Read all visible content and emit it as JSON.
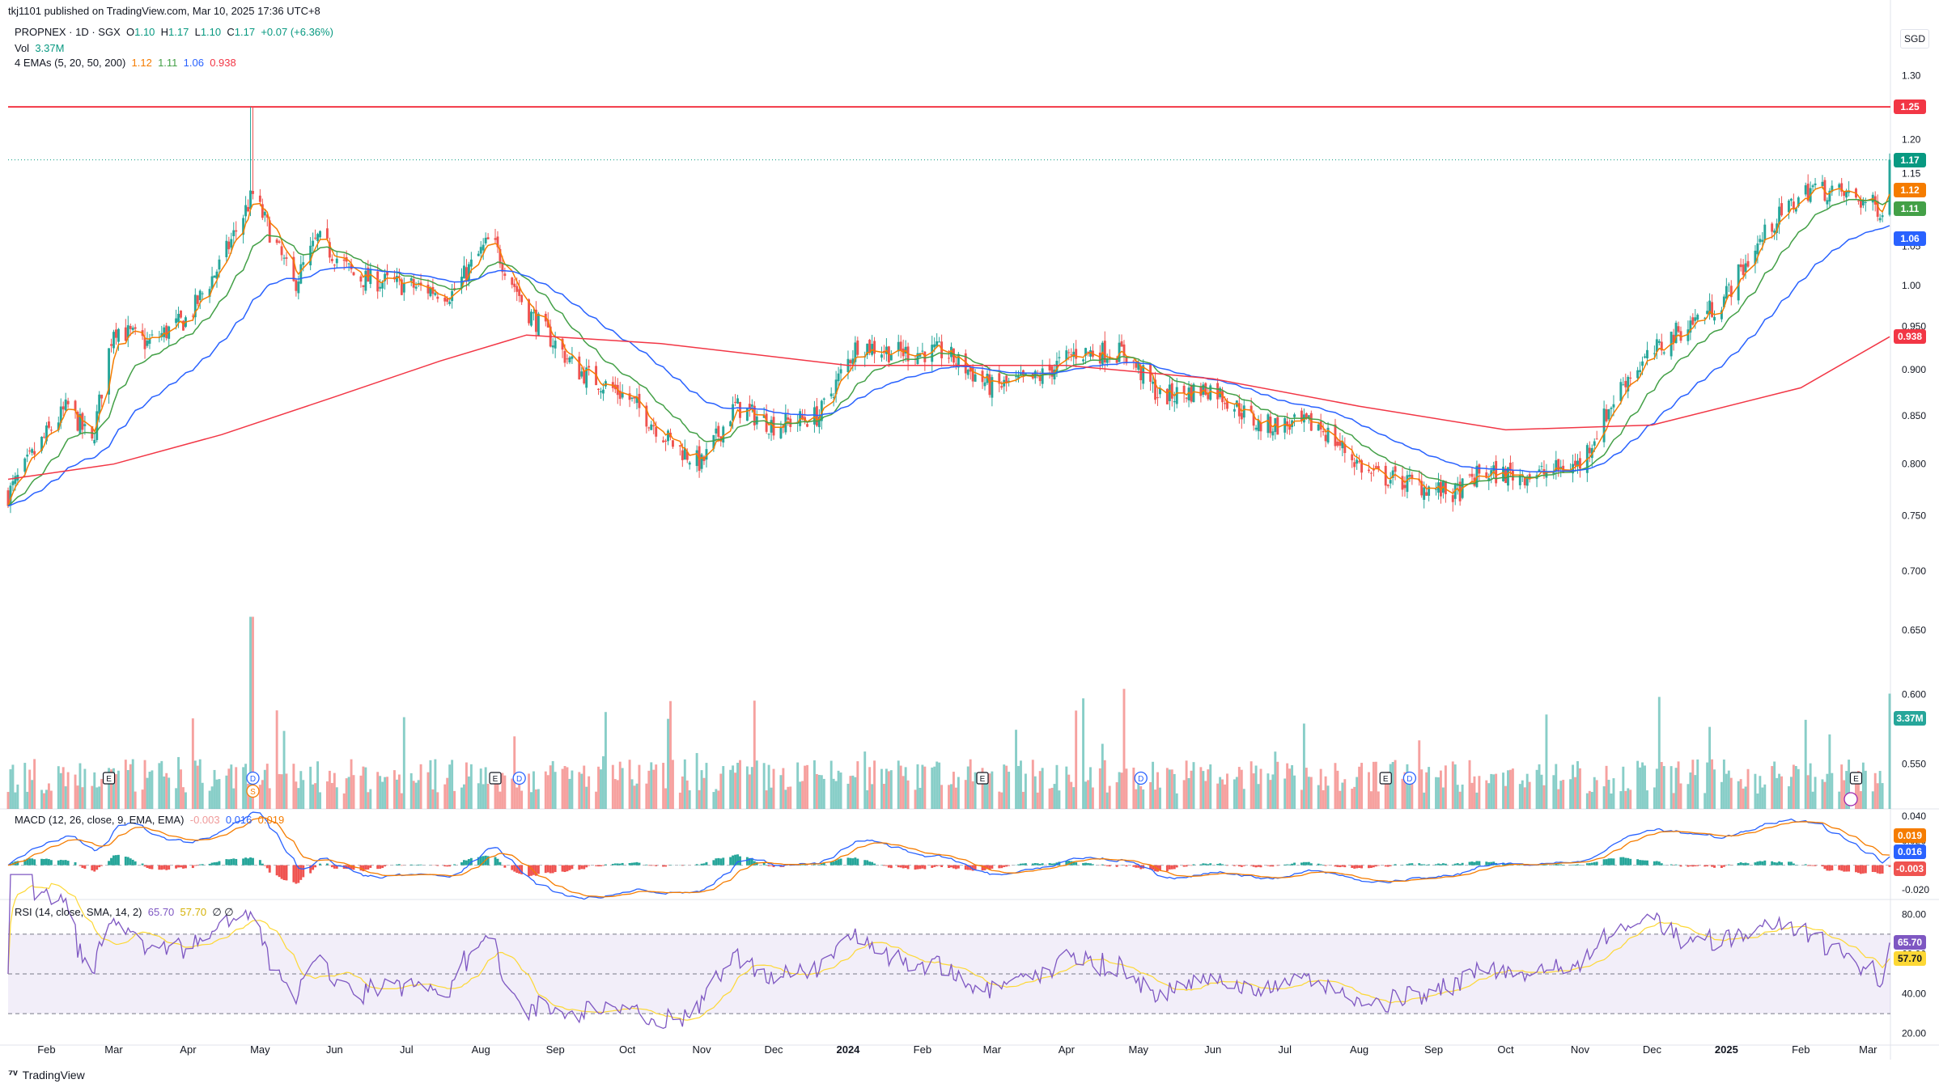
{
  "publish_line": "tkj1101 published on TradingView.com, Mar 10, 2025 17:36 UTC+8",
  "footer_brand": "TradingView",
  "currency": "SGD",
  "legend": {
    "symbol": "PROPNEX · 1D · SGX",
    "open_label": "O",
    "open": "1.10",
    "high_label": "H",
    "high": "1.17",
    "low_label": "L",
    "low": "1.10",
    "close_label": "C",
    "close": "1.17",
    "change": "+0.07 (+6.36%)",
    "vol_label": "Vol",
    "vol": "3.37M",
    "ema_label": "4 EMAs (5, 20, 50, 200)",
    "ema5": "1.12",
    "ema20": "1.11",
    "ema50": "1.06",
    "ema200": "0.938",
    "macd_label": "MACD (12, 26, close, 9, EMA, EMA)",
    "macd_hist": "-0.003",
    "macd_line": "0.016",
    "macd_signal": "0.019",
    "rsi_label": "RSI (14, close, SMA, 14, 2)",
    "rsi": "65.70",
    "rsi_ma": "57.70",
    "rsi_extra": "∅ ∅"
  },
  "colors": {
    "up": "#26a69a",
    "down": "#ef5350",
    "ema5": "#f57c00",
    "ema20": "#43a047",
    "ema50": "#2962ff",
    "ema200": "#f23645",
    "resistance": "#f23645",
    "rsi": "#7e57c2",
    "rsi_ma": "#fdd835"
  },
  "price_tags": [
    {
      "value": "1.25",
      "color": "#f23645"
    },
    {
      "value": "1.17",
      "color": "#089981"
    },
    {
      "value": "1.12",
      "color": "#f57c00"
    },
    {
      "value": "1.11",
      "color": "#43a047"
    },
    {
      "value": "1.06",
      "color": "#2962ff"
    },
    {
      "value": "0.938",
      "color": "#f23645"
    },
    {
      "value": "3.37M",
      "color": "#26a69a"
    }
  ],
  "macd_tags": [
    {
      "value": "0.019",
      "color": "#f57c00"
    },
    {
      "value": "0.016",
      "color": "#2962ff"
    },
    {
      "value": "-0.003",
      "color": "#ef5350"
    }
  ],
  "rsi_tags": [
    {
      "value": "65.70",
      "color": "#7e57c2"
    },
    {
      "value": "57.70",
      "color": "#fdd835"
    }
  ],
  "event_markers": [
    {
      "type": "E",
      "date": "2023-02-27"
    },
    {
      "type": "D",
      "date": "2023-04-28"
    },
    {
      "type": "S",
      "date": "2023-04-28"
    },
    {
      "type": "E",
      "date": "2023-08-07"
    },
    {
      "type": "D",
      "date": "2023-08-17"
    },
    {
      "type": "E",
      "date": "2024-02-26"
    },
    {
      "type": "D",
      "date": "2024-05-02"
    },
    {
      "type": "E",
      "date": "2024-08-12"
    },
    {
      "type": "D",
      "date": "2024-08-22"
    },
    {
      "type": "E",
      "date": "2025-02-24"
    }
  ],
  "chart_data": {
    "type": "candlestick",
    "x_axis": {
      "type": "date",
      "range": [
        "2023-01-16",
        "2025-03-10"
      ],
      "tick_labels": [
        {
          "date": "2023-02-01",
          "label": "Feb"
        },
        {
          "date": "2023-03-01",
          "label": "Mar"
        },
        {
          "date": "2023-04-01",
          "label": "Apr"
        },
        {
          "date": "2023-05-01",
          "label": "May"
        },
        {
          "date": "2023-06-01",
          "label": "Jun"
        },
        {
          "date": "2023-07-01",
          "label": "Jul"
        },
        {
          "date": "2023-08-01",
          "label": "Aug"
        },
        {
          "date": "2023-09-01",
          "label": "Sep"
        },
        {
          "date": "2023-10-01",
          "label": "Oct"
        },
        {
          "date": "2023-11-01",
          "label": "Nov"
        },
        {
          "date": "2023-12-01",
          "label": "Dec"
        },
        {
          "date": "2024-01-01",
          "label": "2024"
        },
        {
          "date": "2024-02-01",
          "label": "Feb"
        },
        {
          "date": "2024-03-01",
          "label": "Mar"
        },
        {
          "date": "2024-04-01",
          "label": "Apr"
        },
        {
          "date": "2024-05-01",
          "label": "May"
        },
        {
          "date": "2024-06-01",
          "label": "Jun"
        },
        {
          "date": "2024-07-01",
          "label": "Jul"
        },
        {
          "date": "2024-08-01",
          "label": "Aug"
        },
        {
          "date": "2024-09-01",
          "label": "Sep"
        },
        {
          "date": "2024-10-01",
          "label": "Oct"
        },
        {
          "date": "2024-11-01",
          "label": "Nov"
        },
        {
          "date": "2024-12-01",
          "label": "Dec"
        },
        {
          "date": "2025-01-01",
          "label": "2025"
        },
        {
          "date": "2025-02-01",
          "label": "Feb"
        },
        {
          "date": "2025-03-01",
          "label": "Mar"
        }
      ]
    },
    "price_axis": {
      "scale": "log",
      "range": [
        0.52,
        1.4
      ],
      "ticks": [
        "1.35",
        "1.30",
        "1.25",
        "1.20",
        "1.15",
        "1.10",
        "1.05",
        "1.00",
        "0.950",
        "0.900",
        "0.850",
        "0.800",
        "0.750",
        "0.700",
        "0.650",
        "0.600",
        "0.550"
      ]
    },
    "resistance_level": 1.25,
    "last_price": 1.17,
    "price_path": [
      {
        "date": "2023-01-16",
        "close": 0.77
      },
      {
        "date": "2023-02-01",
        "close": 0.83
      },
      {
        "date": "2023-02-10",
        "close": 0.86
      },
      {
        "date": "2023-02-20",
        "close": 0.82
      },
      {
        "date": "2023-03-01",
        "close": 0.95
      },
      {
        "date": "2023-03-15",
        "close": 0.93
      },
      {
        "date": "2023-04-01",
        "close": 0.96
      },
      {
        "date": "2023-04-15",
        "close": 1.03
      },
      {
        "date": "2023-04-28",
        "close": 1.12
      },
      {
        "date": "2023-05-05",
        "close": 1.07
      },
      {
        "date": "2023-05-15",
        "close": 1.0
      },
      {
        "date": "2023-05-25",
        "close": 1.06
      },
      {
        "date": "2023-06-10",
        "close": 1.01
      },
      {
        "date": "2023-07-01",
        "close": 1.0
      },
      {
        "date": "2023-07-20",
        "close": 0.99
      },
      {
        "date": "2023-08-05",
        "close": 1.06
      },
      {
        "date": "2023-08-20",
        "close": 0.97
      },
      {
        "date": "2023-09-10",
        "close": 0.9
      },
      {
        "date": "2023-10-01",
        "close": 0.87
      },
      {
        "date": "2023-10-20",
        "close": 0.82
      },
      {
        "date": "2023-11-01",
        "close": 0.8
      },
      {
        "date": "2023-11-15",
        "close": 0.86
      },
      {
        "date": "2023-12-01",
        "close": 0.84
      },
      {
        "date": "2023-12-20",
        "close": 0.85
      },
      {
        "date": "2024-01-05",
        "close": 0.93
      },
      {
        "date": "2024-01-20",
        "close": 0.92
      },
      {
        "date": "2024-02-10",
        "close": 0.92
      },
      {
        "date": "2024-03-01",
        "close": 0.88
      },
      {
        "date": "2024-03-20",
        "close": 0.89
      },
      {
        "date": "2024-04-05",
        "close": 0.92
      },
      {
        "date": "2024-04-25",
        "close": 0.92
      },
      {
        "date": "2024-05-10",
        "close": 0.87
      },
      {
        "date": "2024-06-01",
        "close": 0.88
      },
      {
        "date": "2024-06-20",
        "close": 0.84
      },
      {
        "date": "2024-07-15",
        "close": 0.84
      },
      {
        "date": "2024-08-05",
        "close": 0.79
      },
      {
        "date": "2024-08-25",
        "close": 0.78
      },
      {
        "date": "2024-09-10",
        "close": 0.77
      },
      {
        "date": "2024-09-20",
        "close": 0.79
      },
      {
        "date": "2024-10-15",
        "close": 0.79
      },
      {
        "date": "2024-11-01",
        "close": 0.8
      },
      {
        "date": "2024-11-20",
        "close": 0.89
      },
      {
        "date": "2024-12-10",
        "close": 0.94
      },
      {
        "date": "2024-12-30",
        "close": 0.98
      },
      {
        "date": "2025-01-20",
        "close": 1.08
      },
      {
        "date": "2025-02-05",
        "close": 1.13
      },
      {
        "date": "2025-02-20",
        "close": 1.12
      },
      {
        "date": "2025-03-07",
        "close": 1.1
      },
      {
        "date": "2025-03-10",
        "close": 1.17
      }
    ],
    "ema200_path": [
      {
        "date": "2023-01-16",
        "value": 0.785
      },
      {
        "date": "2023-03-01",
        "value": 0.8
      },
      {
        "date": "2023-04-15",
        "value": 0.83
      },
      {
        "date": "2023-06-01",
        "value": 0.87
      },
      {
        "date": "2023-07-15",
        "value": 0.91
      },
      {
        "date": "2023-08-20",
        "value": 0.94
      },
      {
        "date": "2023-10-15",
        "value": 0.93
      },
      {
        "date": "2024-01-01",
        "value": 0.905
      },
      {
        "date": "2024-04-01",
        "value": 0.905
      },
      {
        "date": "2024-06-01",
        "value": 0.89
      },
      {
        "date": "2024-08-01",
        "value": 0.86
      },
      {
        "date": "2024-10-01",
        "value": 0.835
      },
      {
        "date": "2024-12-01",
        "value": 0.84
      },
      {
        "date": "2025-02-01",
        "value": 0.88
      },
      {
        "date": "2025-03-10",
        "value": 0.938
      }
    ],
    "volume": {
      "last": "3.37M",
      "max_shown": "≈10M"
    },
    "macd": {
      "range": [
        -0.028,
        0.046
      ],
      "ticks": [
        "0.040",
        "0.020",
        "0",
        "-0.020"
      ],
      "line": 0.016,
      "signal": 0.019,
      "hist": -0.003
    },
    "rsi": {
      "range": [
        15,
        85
      ],
      "ticks": [
        "80.00",
        "60.00",
        "40.00",
        "20.00"
      ],
      "bands": [
        70,
        50,
        30
      ],
      "value": 65.7,
      "ma": 57.7
    }
  }
}
